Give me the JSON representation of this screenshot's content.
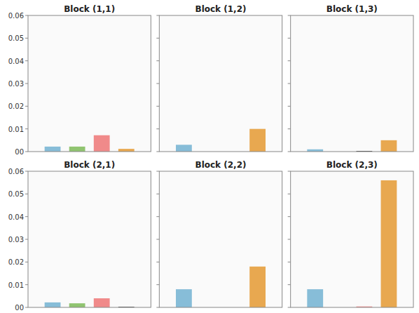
{
  "chart_data": [
    {
      "type": "bar",
      "title": "Block (1,1)",
      "x": [
        1,
        2,
        3,
        4
      ],
      "values": [
        0.0022,
        0.0022,
        0.0072,
        0.0012
      ],
      "colors": [
        "#87BDD8",
        "#90C470",
        "#F08A8A",
        "#E8A850"
      ],
      "xlim": [
        0.0,
        5.0
      ],
      "ylim": [
        0,
        0.06
      ],
      "yticks": [
        {
          "value": 0.0,
          "label": "00"
        },
        0.01,
        0.02,
        0.03,
        0.04,
        0.05,
        0.06
      ],
      "tick_labels": "y"
    },
    {
      "type": "bar",
      "title": "Block (1,2)",
      "x": [
        1,
        4
      ],
      "values": [
        0.003,
        0.01
      ],
      "colors": [
        "#87BDD8",
        "#E8A850"
      ],
      "xlim": [
        0.0,
        5.0
      ],
      "ylim": [
        0,
        0.06
      ],
      "yticks": [
        0.0,
        0.01,
        0.02,
        0.03,
        0.04,
        0.05,
        0.06
      ],
      "tick_labels": false
    },
    {
      "type": "bar",
      "title": "Block (1,3)",
      "x": [
        1,
        3,
        4
      ],
      "values": [
        0.001,
        0.0003,
        0.005
      ],
      "colors": [
        "#87BDD8",
        "#404040",
        "#E8A850"
      ],
      "xlim": [
        0.0,
        5.0
      ],
      "ylim": [
        0,
        0.06
      ],
      "yticks": [
        0.0,
        0.01,
        0.02,
        0.03,
        0.04,
        0.05,
        0.06
      ],
      "tick_labels": false
    },
    {
      "type": "bar",
      "title": "Block (2,1)",
      "x": [
        1,
        2,
        3,
        4
      ],
      "values": [
        0.0022,
        0.0018,
        0.004,
        0.0003
      ],
      "colors": [
        "#87BDD8",
        "#90C470",
        "#F08A8A",
        "#404040"
      ],
      "xlim": [
        0.0,
        5.0
      ],
      "ylim": [
        0,
        0.06
      ],
      "yticks": [
        {
          "value": 0.0,
          "label": "00"
        },
        0.01,
        0.02,
        0.03,
        0.04,
        0.05,
        0.06
      ],
      "tick_labels": "y"
    },
    {
      "type": "bar",
      "title": "Block (2,2)",
      "x": [
        1,
        4
      ],
      "values": [
        0.008,
        0.018
      ],
      "colors": [
        "#87BDD8",
        "#E8A850"
      ],
      "xlim": [
        0.0,
        5.0
      ],
      "ylim": [
        0,
        0.06
      ],
      "yticks": [
        0.0,
        0.01,
        0.02,
        0.03,
        0.04,
        0.05,
        0.06
      ],
      "tick_labels": false
    },
    {
      "type": "bar",
      "title": "Block (2,3)",
      "x": [
        1,
        3,
        4
      ],
      "values": [
        0.008,
        0.0004,
        0.056
      ],
      "colors": [
        "#87BDD8",
        "#F08A8A",
        "#E8A850"
      ],
      "xlim": [
        0.0,
        5.0
      ],
      "ylim": [
        0,
        0.06
      ],
      "yticks": [
        0.0,
        0.01,
        0.02,
        0.03,
        0.04,
        0.05,
        0.06
      ],
      "tick_labels": false
    }
  ]
}
